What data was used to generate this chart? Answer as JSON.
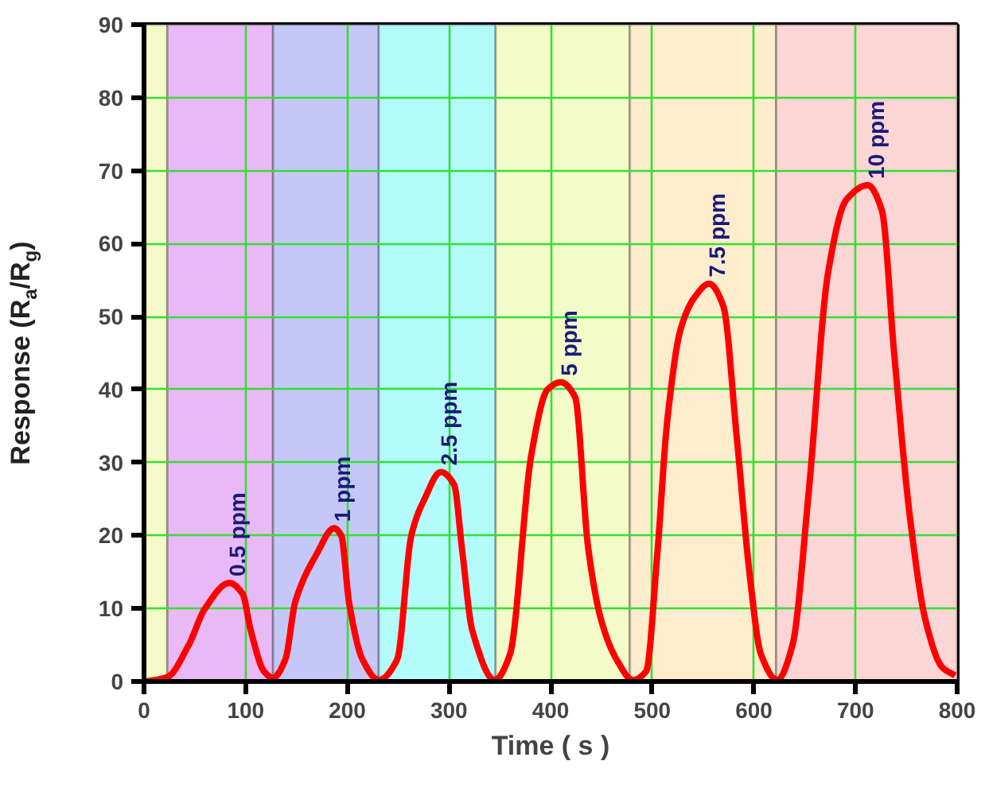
{
  "chart_data": {
    "type": "line",
    "xlabel": "Time ( s )",
    "ylabel": "Response (R$_{a}$/R$_{g}$)",
    "xlim": [
      0,
      800
    ],
    "ylim": [
      0,
      90
    ],
    "xticks": [
      0,
      100,
      200,
      300,
      400,
      500,
      600,
      700,
      800
    ],
    "yticks": [
      0,
      10,
      20,
      30,
      40,
      50,
      60,
      70,
      80,
      90
    ],
    "grid": true,
    "line_style": "solid",
    "marker": "none",
    "series": [
      {
        "color": "#ff0000",
        "x": [
          2,
          23,
          44,
          60,
          84,
          97,
          105,
          118,
          127,
          139,
          149,
          170,
          187,
          194,
          202,
          215,
          231,
          249,
          263,
          276,
          292,
          305,
          313,
          323,
          345,
          360,
          381,
          397,
          410,
          424,
          437,
          450,
          465,
          481,
          494,
          505,
          515,
          528,
          542,
          556,
          570,
          583,
          596,
          607,
          623,
          638,
          654,
          673,
          691,
          712,
          726,
          738,
          754,
          769,
          785,
          798
        ],
        "values": [
          0,
          0.6,
          5,
          10,
          13.5,
          12,
          7,
          1.4,
          0.5,
          3,
          11,
          17.5,
          21,
          20,
          10.6,
          3,
          0.2,
          3,
          20,
          25,
          28.7,
          27,
          18,
          7,
          0.2,
          3.7,
          31,
          40,
          41,
          39,
          18.3,
          8.3,
          3,
          0.2,
          1.4,
          17.5,
          36,
          48.3,
          52.7,
          54.5,
          51.4,
          33.7,
          14.5,
          3.7,
          0.2,
          5,
          26,
          56,
          66,
          68,
          64.5,
          45,
          22,
          8.3,
          2,
          0.8
        ]
      }
    ],
    "bands": [
      {
        "axis": "x",
        "from": 0,
        "to": 23,
        "color": "#f4fbc8"
      },
      {
        "axis": "x",
        "from": 23,
        "to": 127,
        "color": "#e9b9f6"
      },
      {
        "axis": "x",
        "from": 127,
        "to": 231,
        "color": "#c5c8f6"
      },
      {
        "axis": "x",
        "from": 231,
        "to": 346,
        "color": "#b4fbfb"
      },
      {
        "axis": "x",
        "from": 346,
        "to": 478,
        "color": "#f3fbc9"
      },
      {
        "axis": "x",
        "from": 478,
        "to": 622,
        "color": "#fdedcd"
      },
      {
        "axis": "x",
        "from": 622,
        "to": 800,
        "color": "#fcd5d5"
      }
    ],
    "annotations": [
      {
        "text": "0.5 ppm",
        "x": 84,
        "y": 13.5
      },
      {
        "text": "1 ppm",
        "x": 187,
        "y": 21
      },
      {
        "text": "2.5 ppm",
        "x": 292,
        "y": 28.7
      },
      {
        "text": "5 ppm",
        "x": 410,
        "y": 41
      },
      {
        "text": "7.5 ppm",
        "x": 556,
        "y": 54.5
      },
      {
        "text": "10 ppm",
        "x": 712,
        "y": 68
      }
    ]
  }
}
